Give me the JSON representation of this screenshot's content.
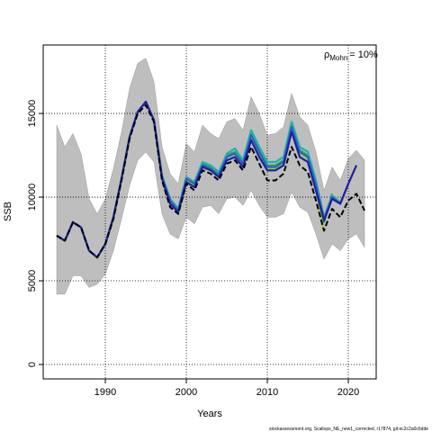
{
  "chart_data": {
    "type": "line",
    "xlabel": "Years",
    "ylabel": "SSB",
    "annotation": {
      "symbol": "ρ",
      "subscript": "Mohn",
      "text": "= 10%"
    },
    "footer": "stockassessment.org, Scallops_NE_new1_corrected, r17874, git:ec2c2a0c6dde",
    "xlim": [
      1982.33,
      2023.44
    ],
    "ylim": [
      -860,
      19090
    ],
    "xticks": [
      1990,
      2000,
      2010,
      2020
    ],
    "yticks": [
      0,
      5000,
      10000,
      15000
    ],
    "grid": true,
    "x": [
      1984,
      1985,
      1986,
      1987,
      1988,
      1989,
      1990,
      1991,
      1992,
      1993,
      1994,
      1995,
      1996,
      1997,
      1998,
      1999,
      2000,
      2001,
      2002,
      2003,
      2004,
      2005,
      2006,
      2007,
      2008,
      2009,
      2010,
      2011,
      2012,
      2013,
      2014,
      2015,
      2016,
      2017,
      2018,
      2019,
      2020,
      2021,
      2022
    ],
    "band": {
      "color": "#bebebe",
      "upper": [
        14300,
        13000,
        13800,
        12600,
        9900,
        9000,
        9900,
        11700,
        13900,
        16500,
        18000,
        18300,
        16900,
        13000,
        11400,
        10800,
        13200,
        12700,
        14300,
        13800,
        13500,
        14500,
        14700,
        14000,
        16000,
        15000,
        13700,
        13800,
        14200,
        16200,
        14800,
        14300,
        12700,
        10400,
        11800,
        11000,
        12300,
        12800,
        12200
      ],
      "lower": [
        4200,
        4200,
        5300,
        5300,
        4600,
        4800,
        5400,
        6800,
        8700,
        10700,
        12200,
        12700,
        12100,
        9000,
        7800,
        7500,
        8800,
        8400,
        9400,
        9500,
        9000,
        9900,
        10000,
        9500,
        10400,
        9500,
        8800,
        8800,
        9000,
        10300,
        9400,
        9100,
        7800,
        6300,
        7200,
        6800,
        7500,
        7800,
        7000
      ]
    },
    "series": [
      {
        "color": "#9acd32",
        "values": [
          7700,
          7400,
          8500,
          8200,
          6800,
          6400,
          7200,
          8800,
          11100,
          13600,
          15100,
          15700,
          14600,
          11200,
          9700,
          9200,
          11000,
          10700,
          11900,
          11700,
          11300,
          12400,
          12600,
          12000,
          13600,
          12700,
          11700,
          11700,
          12000,
          13900,
          12600,
          12300,
          10500,
          7900,
          null,
          null,
          null,
          null,
          null
        ]
      },
      {
        "color": "#22aa55",
        "values": [
          7700,
          7400,
          8500,
          8200,
          6800,
          6400,
          7200,
          8800,
          11100,
          13600,
          15100,
          15700,
          14600,
          11300,
          9800,
          9300,
          11100,
          10800,
          12000,
          11800,
          11400,
          12500,
          12700,
          12100,
          13800,
          12900,
          11900,
          11900,
          12200,
          14200,
          12800,
          12500,
          10800,
          8500,
          10200,
          null,
          null,
          null,
          null
        ]
      },
      {
        "color": "#20b0b0",
        "values": [
          7700,
          7400,
          8500,
          8200,
          6800,
          6400,
          7200,
          8800,
          11100,
          13600,
          15100,
          15700,
          14600,
          11300,
          9900,
          9300,
          11200,
          10900,
          12100,
          11900,
          11500,
          12600,
          12900,
          12200,
          14000,
          13000,
          12100,
          12100,
          12400,
          14500,
          13000,
          12700,
          11000,
          8800,
          10100,
          9700,
          null,
          null,
          null
        ]
      },
      {
        "color": "#3060c0",
        "values": [
          7700,
          7400,
          8500,
          8200,
          6800,
          6400,
          7200,
          8800,
          11100,
          13600,
          15100,
          15700,
          14600,
          11200,
          9800,
          9200,
          11100,
          10800,
          11900,
          11700,
          11300,
          12400,
          12600,
          12000,
          13700,
          12700,
          11800,
          11800,
          12100,
          14200,
          12700,
          12400,
          10700,
          8700,
          10000,
          9600,
          10800,
          null,
          null
        ]
      },
      {
        "color": "#2020a0",
        "values": [
          7700,
          7400,
          8500,
          8200,
          6800,
          6400,
          7200,
          8800,
          11100,
          13600,
          15100,
          15700,
          14600,
          11100,
          9600,
          9100,
          10900,
          10600,
          11800,
          11600,
          11200,
          12200,
          12400,
          11800,
          13400,
          12400,
          11600,
          11600,
          11900,
          13900,
          12400,
          12100,
          10400,
          8600,
          9900,
          9600,
          10800,
          11900,
          null
        ]
      },
      {
        "color": "#000000",
        "dashed": true,
        "values": [
          7700,
          7400,
          8500,
          8200,
          6800,
          6400,
          7200,
          8700,
          11000,
          13500,
          15000,
          15500,
          14500,
          11000,
          9400,
          9000,
          10800,
          10400,
          11600,
          11400,
          11000,
          12000,
          12200,
          11600,
          13000,
          12000,
          11000,
          11000,
          11400,
          13000,
          11900,
          11500,
          9800,
          8000,
          9300,
          8800,
          9800,
          10200,
          9200
        ]
      }
    ]
  }
}
